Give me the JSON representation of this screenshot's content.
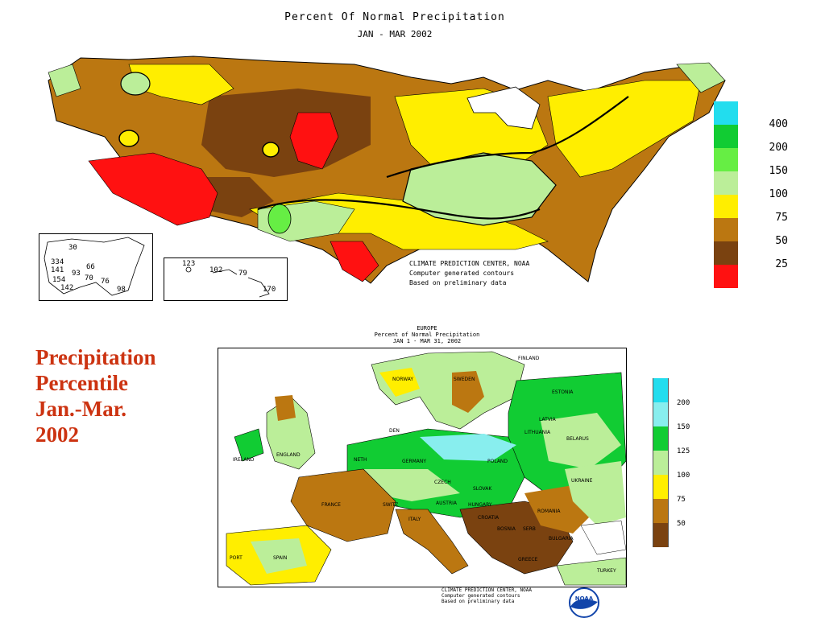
{
  "us_map": {
    "title": "Percent Of Normal Precipitation",
    "subtitle": "JAN - MAR 2002",
    "legend": [
      {
        "label": "",
        "color": "#22ddee"
      },
      {
        "label": "400",
        "color": "#11cc33"
      },
      {
        "label": "200",
        "color": "#66ee44"
      },
      {
        "label": "150",
        "color": "#bbee99"
      },
      {
        "label": "100",
        "color": "#ffee00"
      },
      {
        "label": "75",
        "color": "#bb7711"
      },
      {
        "label": "50",
        "color": "#7a4210"
      },
      {
        "label": "25",
        "color": "#ff1111"
      }
    ],
    "credit": [
      "CLIMATE PREDICTION CENTER, NOAA",
      "Computer generated contours",
      "Based on preliminary data"
    ],
    "alaska_values": [
      "30",
      "334",
      "141",
      "66",
      "93",
      "154",
      "70",
      "76",
      "142",
      "98"
    ],
    "hawaii_values": [
      "123",
      "102",
      "79",
      "170"
    ]
  },
  "headline": [
    "Precipitation",
    "Percentile",
    "Jan.-Mar.",
    "2002"
  ],
  "europe_map": {
    "title_lines": [
      "EUROPE",
      "Percent of Normal Precipitation",
      "JAN 1 - MAR 31, 2002"
    ],
    "legend": [
      {
        "label": "200",
        "color": "#22ddee"
      },
      {
        "label": "150",
        "color": "#88eeee"
      },
      {
        "label": "125",
        "color": "#11cc33"
      },
      {
        "label": "100",
        "color": "#bbee99"
      },
      {
        "label": "75",
        "color": "#ffee00"
      },
      {
        "label": "50",
        "color": "#bb7711"
      },
      {
        "label": "",
        "color": "#7a4210"
      }
    ],
    "countries": [
      "FINLAND",
      "NORWAY",
      "SWEDEN",
      "ESTONIA",
      "LATVIA",
      "LITHUANIA",
      "DEN",
      "BELARUS",
      "IRELAND",
      "ENGLAND",
      "NETH",
      "GERMANY",
      "POLAND",
      "UKRAINE",
      "CZECH",
      "SLOVAK",
      "FRANCE",
      "SWITZ",
      "AUSTRIA",
      "HUNGARY",
      "ROMANIA",
      "ITALY",
      "CROATIA",
      "BOSNIA",
      "SERB",
      "BULGARIA",
      "SPAIN",
      "PORT",
      "GREECE",
      "TURKEY"
    ],
    "credit": [
      "CLIMATE PREDICTION CENTER, NOAA",
      "Computer generated contours",
      "Based on preliminary data"
    ],
    "logo_text": "NOAA"
  }
}
